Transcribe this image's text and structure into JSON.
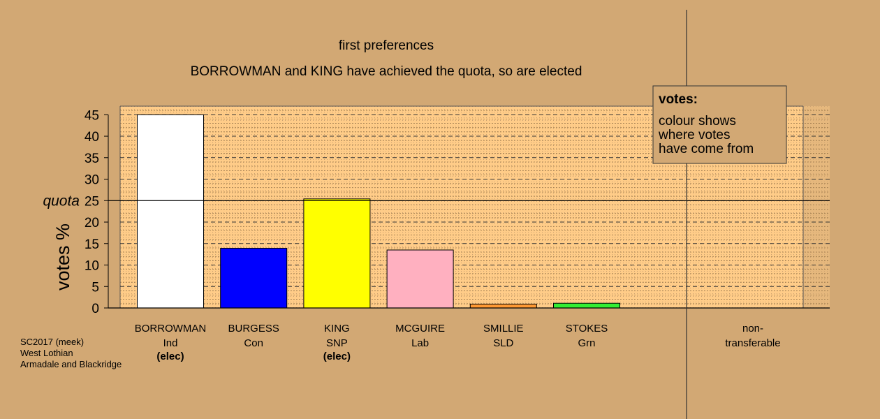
{
  "titles": {
    "line1": "first preferences",
    "line2": "BORROWMAN and KING have achieved the quota, so are elected"
  },
  "source": {
    "line1": "SC2017 (meek)",
    "line2": "West Lothian",
    "line3": "Armadale and Blackridge"
  },
  "legend": {
    "title": "votes:",
    "lines": [
      "colour shows",
      "where votes",
      "have come from"
    ]
  },
  "colors": {
    "background": "#D2A874",
    "plot_area": "#FFCC88",
    "grid": "#000000"
  },
  "chart_data": {
    "type": "bar",
    "ylabel": "votes %",
    "ylim": [
      0,
      47
    ],
    "yticks": [
      0,
      5,
      10,
      15,
      20,
      25,
      30,
      35,
      40,
      45
    ],
    "quota": {
      "label": "quota",
      "value": 25
    },
    "grid": true,
    "legend_position": "top-right",
    "candidates": [
      {
        "name": "BORROWMAN",
        "party": "Ind",
        "note": "(elec)",
        "value": 45.0,
        "color": "#FFFFFF"
      },
      {
        "name": "BURGESS",
        "party": "Con",
        "note": "",
        "value": 13.9,
        "color": "#0000FF"
      },
      {
        "name": "KING",
        "party": "SNP",
        "note": "(elec)",
        "value": 25.4,
        "color": "#FFFF00"
      },
      {
        "name": "MCGUIRE",
        "party": "Lab",
        "note": "",
        "value": 13.5,
        "color": "#FFB0C0"
      },
      {
        "name": "SMILLIE",
        "party": "SLD",
        "note": "",
        "value": 0.9,
        "color": "#FF9933"
      },
      {
        "name": "STOKES",
        "party": "Grn",
        "note": "",
        "value": 1.1,
        "color": "#33EE33"
      }
    ],
    "non_transferable": {
      "line1": "non-",
      "line2": "transferable",
      "value": 0
    }
  }
}
